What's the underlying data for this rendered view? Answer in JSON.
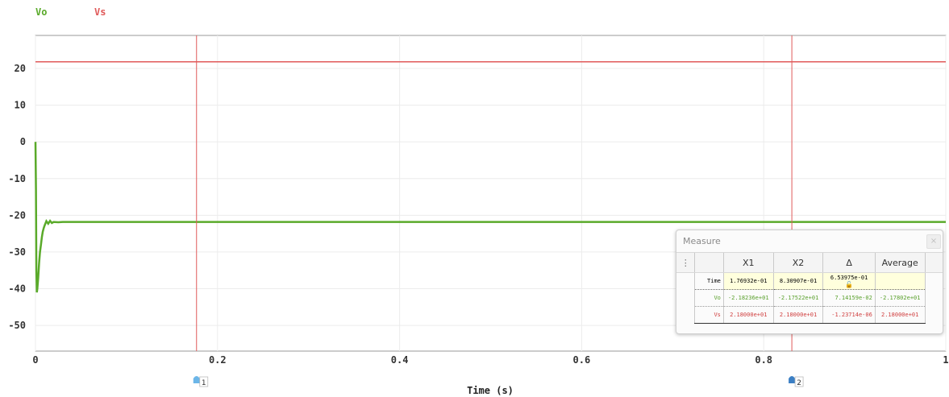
{
  "legend": [
    {
      "name": "Vo",
      "color": "#5aaa2a"
    },
    {
      "name": "Vs",
      "color": "#e05a5a"
    }
  ],
  "chart_data": {
    "type": "line",
    "xlabel": "Time (s)",
    "ylabel": "",
    "xlim": [
      0,
      1
    ],
    "ylim": [
      -57,
      29
    ],
    "xticks": [
      0,
      0.2,
      0.4,
      0.6,
      0.8,
      1
    ],
    "xtick_labels": [
      "0",
      "0.2",
      "0.4",
      "0.6",
      "0.8",
      "1"
    ],
    "yticks": [
      20,
      10,
      0,
      -10,
      -20,
      -30,
      -40,
      -50
    ],
    "ytick_labels": [
      "20",
      "10",
      "0",
      "-10",
      "-20",
      "-30",
      "-40",
      "-50"
    ],
    "series": [
      {
        "name": "Vo",
        "color": "#5aaa2a",
        "x": [
          0,
          0.0005,
          0.001,
          0.0015,
          0.002,
          0.003,
          0.004,
          0.005,
          0.006,
          0.007,
          0.008,
          0.009,
          0.01,
          0.011,
          0.012,
          0.014,
          0.016,
          0.018,
          0.02,
          0.025,
          0.03,
          0.04,
          0.06,
          0.1,
          0.2,
          0.4,
          0.6,
          0.8,
          1.0
        ],
        "y": [
          0,
          -13,
          -35,
          -41,
          -40,
          -37,
          -33,
          -30,
          -28,
          -26,
          -24.5,
          -23.5,
          -22.8,
          -22.2,
          -21.6,
          -22.3,
          -21.5,
          -22.1,
          -21.8,
          -21.9,
          -21.8,
          -21.8,
          -21.8,
          -21.8,
          -21.8,
          -21.8,
          -21.8,
          -21.8,
          -21.8
        ]
      },
      {
        "name": "Vs",
        "color": "#e05a5a",
        "x": [
          0,
          1
        ],
        "y": [
          21.8,
          21.8
        ]
      }
    ],
    "cursors": [
      {
        "label": "1",
        "x": 0.176932,
        "color": "#e05a5a",
        "marker_color": "#6cb6e8"
      },
      {
        "label": "2",
        "x": 0.830907,
        "color": "#e05a5a",
        "marker_color": "#3b7fc4"
      }
    ],
    "grid": true
  },
  "measure": {
    "title": "Measure",
    "menu_icon": "⋮",
    "close_icon": "×",
    "headers": [
      "X1",
      "X2",
      "Δ",
      "Average"
    ],
    "rows": [
      {
        "label": "Time",
        "cells": [
          "1.76932e-01",
          "8.30907e-01",
          "6.53975e-01",
          ""
        ],
        "lock_icon": "🔓"
      },
      {
        "label": "Vo",
        "cells": [
          "-2.18236e+01",
          "-2.17522e+01",
          "7.14159e-02",
          "-2.17802e+01"
        ]
      },
      {
        "label": "Vs",
        "cells": [
          "2.18000e+01",
          "2.18000e+01",
          "-1.23714e-06",
          "2.18000e+01"
        ]
      }
    ]
  }
}
